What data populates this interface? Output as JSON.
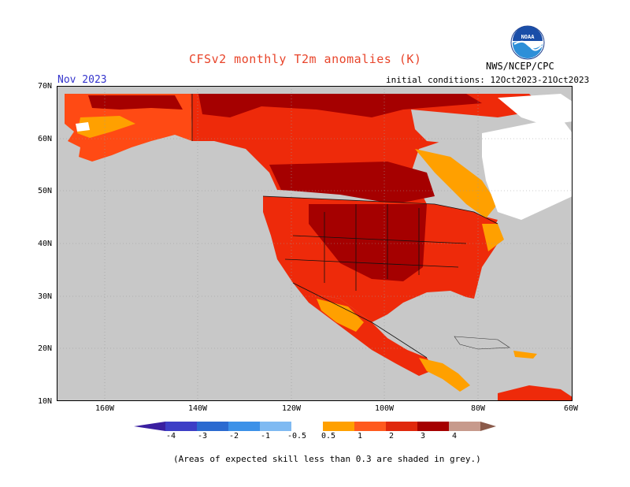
{
  "header": {
    "title": "CFSv2 monthly T2m anomalies (K)",
    "month": "Nov 2023",
    "initial_conditions": "initial conditions: 12Oct2023-21Oct2023",
    "org": "NWS/NCEP/CPC",
    "logo_text": "NOAA"
  },
  "axes": {
    "lat_labels": [
      "70N",
      "60N",
      "50N",
      "40N",
      "30N",
      "20N",
      "10N"
    ],
    "lon_labels": [
      "160W",
      "140W",
      "120W",
      "100W",
      "80W",
      "60W"
    ]
  },
  "colorbar": {
    "labels": [
      "-4",
      "-3",
      "-2",
      "-1",
      "-0.5",
      "0.5",
      "1",
      "2",
      "3",
      "4"
    ],
    "colors": [
      "#3a1fa0",
      "#3d3ec6",
      "#2b6ad0",
      "#3c91e8",
      "#7fbaf2",
      "#ffffff",
      "#ffa000",
      "#ff5a1e",
      "#e0280c",
      "#a50000",
      "#c79a8c",
      "#8a5a4a"
    ]
  },
  "palette": {
    "grey": "#c8c8c8",
    "orange": "#ffa000",
    "red_orange": "#ff4a14",
    "red": "#ee2a0a",
    "dark_red": "#a50000",
    "white": "#ffffff"
  },
  "footer": {
    "note": "(Areas of expected skill less than 0.3 are shaded in grey.)"
  }
}
